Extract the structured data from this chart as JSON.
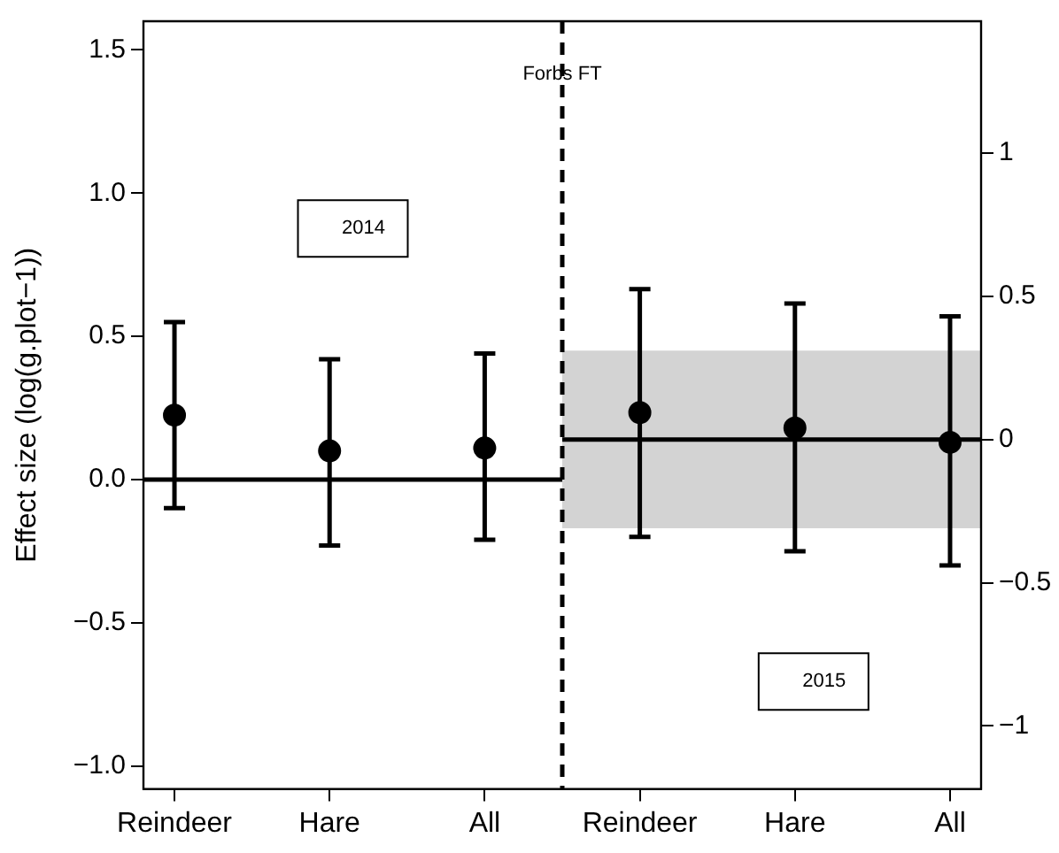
{
  "chart_data": {
    "type": "scatter",
    "ylabel": "Effect size (log(g.plot−1))",
    "categories": [
      "Reindeer",
      "Hare",
      "All",
      "Reindeer",
      "Hare",
      "All"
    ],
    "series": [
      {
        "color": "#000000",
        "axis": "y",
        "values": [
          0.225,
          0.1,
          0.11,
          null,
          null,
          null
        ],
        "errors": [
          [
            -0.1,
            0.55
          ],
          [
            -0.23,
            0.42
          ],
          [
            -0.21,
            0.44
          ],
          null,
          null,
          null
        ]
      },
      {
        "color": "#000000",
        "axis": "y2",
        "values": [
          null,
          null,
          null,
          0.094,
          0.04,
          -0.01
        ],
        "errors": [
          null,
          null,
          null,
          [
            -0.34,
            0.525
          ],
          [
            -0.39,
            0.475
          ],
          [
            -0.44,
            0.43
          ]
        ]
      }
    ],
    "ylim": [
      -1.08,
      1.6
    ],
    "yticks": [
      {
        "value": -1,
        "label": "−1.0"
      },
      {
        "value": -0.5,
        "label": "−0.5"
      },
      {
        "value": 0,
        "label": "0.0"
      },
      {
        "value": 0.5,
        "label": "0.5"
      },
      {
        "value": 1,
        "label": "1.0"
      },
      {
        "value": 1.5,
        "label": "1.5"
      }
    ],
    "y2lim": [
      -1.22,
      1.46
    ],
    "y2ticks": [
      {
        "value": -1,
        "label": "−1"
      },
      {
        "value": -0.5,
        "label": "−0.5"
      },
      0,
      0.5,
      1
    ],
    "ref_lines": [
      {
        "axis": "y",
        "value": 0,
        "color": "#000000"
      },
      {
        "axis": "y2",
        "value": 0,
        "color": "#000000"
      }
    ],
    "bands": [
      {
        "axis": "y2",
        "from": -0.31,
        "to": 0.31,
        "color": "#d3d3d3"
      }
    ],
    "annotations": [
      "Forbs FT",
      "2014",
      "2015"
    ],
    "marker": "circle",
    "grid": false,
    "legend": false
  }
}
